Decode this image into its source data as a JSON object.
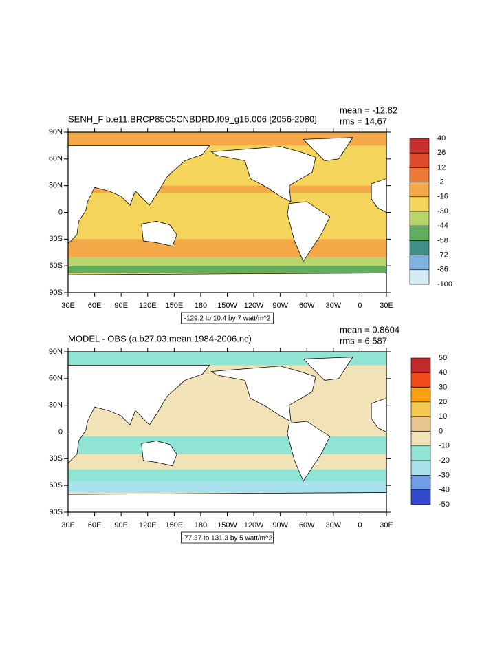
{
  "panels": [
    {
      "title": "SENH_F b.e11.BRCP85C5CNBDRD.f09_g16.006 [2056-2080]",
      "mean": "mean = -12.82",
      "rms": "rms = 14.67",
      "info": "-129.2 to 10.4 by 7 watt/m^2",
      "colorbar": {
        "labels": [
          40,
          26,
          12,
          -2,
          -16,
          -30,
          -44,
          -58,
          -72,
          -86,
          -100
        ],
        "colors": [
          "#c83030",
          "#e04a2c",
          "#ee7a3a",
          "#f4a848",
          "#f4d45a",
          "#b8d46a",
          "#62ad5e",
          "#3f8f86",
          "#7fb2e0",
          "#d4ecf4"
        ]
      }
    },
    {
      "title": "MODEL - OBS (a.b27.03.mean.1984-2006.nc)",
      "mean": "mean = 0.8604",
      "rms": "rms = 6.587",
      "info": "-77.37 to 131.3 by 5 watt/m^2",
      "colorbar": {
        "labels": [
          50,
          40,
          30,
          20,
          10,
          0,
          -10,
          -20,
          -30,
          -40,
          -50
        ],
        "colors": [
          "#c02a2a",
          "#f04a1a",
          "#f8a010",
          "#f4c850",
          "#e8c48e",
          "#f2e2b8",
          "#90e4d4",
          "#a8e0ec",
          "#6f9ee6",
          "#3448cc"
        ]
      }
    }
  ],
  "lon_labels": [
    "30E",
    "60E",
    "90E",
    "120E",
    "150E",
    "180",
    "150W",
    "120W",
    "90W",
    "60W",
    "30W",
    "0",
    "30E"
  ],
  "lat_labels": [
    "90N",
    "60N",
    "30N",
    "0",
    "30S",
    "60S",
    "90S"
  ]
}
